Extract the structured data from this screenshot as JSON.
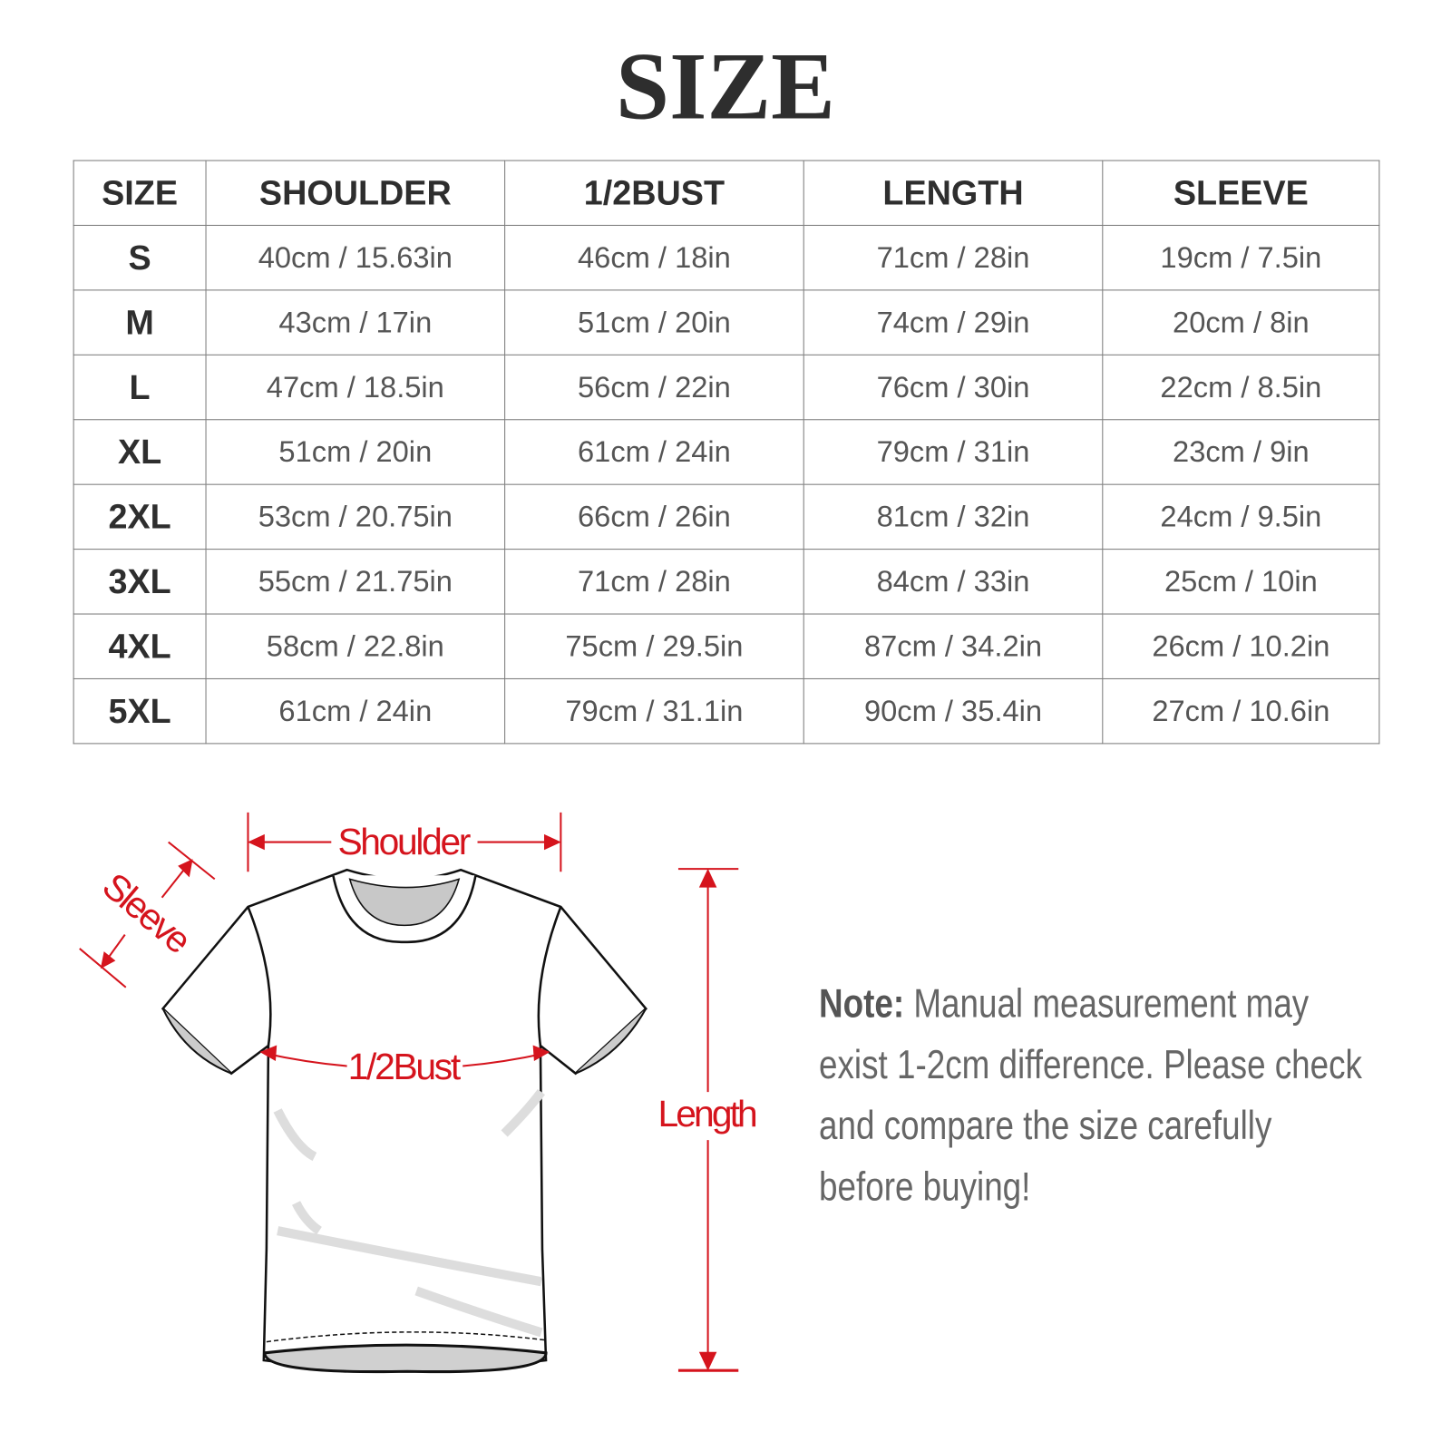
{
  "title": "SIZE",
  "table": {
    "headers": [
      "SIZE",
      "SHOULDER",
      "1/2BUST",
      "LENGTH",
      "SLEEVE"
    ],
    "rows": [
      [
        "S",
        "40cm / 15.63in",
        "46cm / 18in",
        "71cm / 28in",
        "19cm / 7.5in"
      ],
      [
        "M",
        "43cm / 17in",
        "51cm / 20in",
        "74cm / 29in",
        "20cm / 8in"
      ],
      [
        "L",
        "47cm / 18.5in",
        "56cm / 22in",
        "76cm / 30in",
        "22cm / 8.5in"
      ],
      [
        "XL",
        "51cm / 20in",
        "61cm / 24in",
        "79cm / 31in",
        "23cm / 9in"
      ],
      [
        "2XL",
        "53cm / 20.75in",
        "66cm / 26in",
        "81cm / 32in",
        "24cm / 9.5in"
      ],
      [
        "3XL",
        "55cm / 21.75in",
        "71cm / 28in",
        "84cm / 33in",
        "25cm / 10in"
      ],
      [
        "4XL",
        "58cm / 22.8in",
        "75cm / 29.5in",
        "87cm / 34.2in",
        "26cm / 10.2in"
      ],
      [
        "5XL",
        "61cm / 24in",
        "79cm / 31.1in",
        "90cm / 35.4in",
        "27cm / 10.6in"
      ]
    ]
  },
  "diagram": {
    "shoulder_label": "Shoulder",
    "sleeve_label": "Sleeve",
    "bust_label": "1/2Bust",
    "length_label": "Length",
    "accent_color": "#d5141d"
  },
  "note": {
    "label": "Note:",
    "text": " Manual measurement may exist 1-2cm difference. Please check and compare the size carefully before buying!"
  }
}
